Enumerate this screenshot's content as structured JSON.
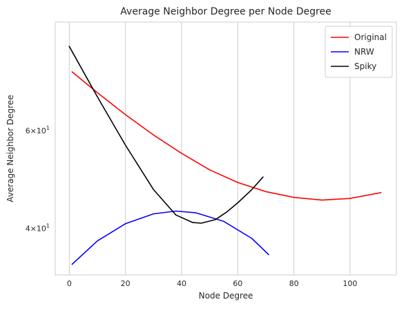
{
  "chart_data": {
    "type": "line",
    "title": "Average Neighbor Degree per Node Degree",
    "xlabel": "Node Degree",
    "ylabel": "Average Neighbor Degree",
    "xlim": [
      -5,
      116.5
    ],
    "ylim": [
      33,
      94
    ],
    "yscale": "log",
    "x_ticks": [
      0,
      20,
      40,
      60,
      80,
      100
    ],
    "x_tick_labels": [
      "0",
      "20",
      "40",
      "60",
      "80",
      "100"
    ],
    "y_ticks": [
      {
        "value": 40,
        "base": "4",
        "mid": "×10",
        "exp": "1"
      },
      {
        "value": 60,
        "base": "6",
        "mid": "×10",
        "exp": "1"
      }
    ],
    "grid": "vertical",
    "legend_position": "top-right",
    "series": [
      {
        "name": "Original",
        "color": "#ff0000",
        "x": [
          1,
          10,
          20,
          30,
          40,
          50,
          60,
          70,
          80,
          90,
          100,
          111
        ],
        "y": [
          76.5,
          70.2,
          64.1,
          58.9,
          54.6,
          51.0,
          48.4,
          46.6,
          45.5,
          45.0,
          45.3,
          46.4
        ]
      },
      {
        "name": "NRW",
        "color": "#0000ff",
        "x": [
          1,
          10,
          20,
          30,
          38,
          45,
          55,
          65,
          71
        ],
        "y": [
          34.5,
          38.0,
          40.8,
          42.5,
          43.0,
          42.7,
          41.2,
          38.4,
          35.9
        ]
      },
      {
        "name": "Spiky",
        "color": "#000000",
        "x": [
          0,
          10,
          20,
          30,
          38,
          44,
          47,
          52,
          56,
          60,
          65,
          69
        ],
        "y": [
          85.0,
          69.0,
          56.5,
          47.0,
          42.3,
          41.0,
          40.9,
          41.5,
          42.8,
          44.5,
          47.0,
          49.5
        ]
      }
    ]
  }
}
